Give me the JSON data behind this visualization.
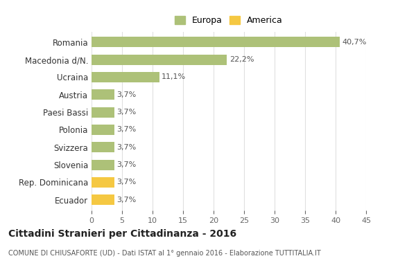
{
  "categories": [
    "Romania",
    "Macedonia d/N.",
    "Ucraina",
    "Austria",
    "Paesi Bassi",
    "Polonia",
    "Svizzera",
    "Slovenia",
    "Rep. Dominicana",
    "Ecuador"
  ],
  "values": [
    40.7,
    22.2,
    11.1,
    3.7,
    3.7,
    3.7,
    3.7,
    3.7,
    3.7,
    3.7
  ],
  "labels": [
    "40,7%",
    "22,2%",
    "11,1%",
    "3,7%",
    "3,7%",
    "3,7%",
    "3,7%",
    "3,7%",
    "3,7%",
    "3,7%"
  ],
  "colors": [
    "#adc178",
    "#adc178",
    "#adc178",
    "#adc178",
    "#adc178",
    "#adc178",
    "#adc178",
    "#adc178",
    "#f5c842",
    "#f5c842"
  ],
  "europa_color": "#adc178",
  "america_color": "#f5c842",
  "xlim": [
    0,
    45
  ],
  "xticks": [
    0,
    5,
    10,
    15,
    20,
    25,
    30,
    35,
    40,
    45
  ],
  "title": "Cittadini Stranieri per Cittadinanza - 2016",
  "subtitle": "COMUNE DI CHIUSAFORTE (UD) - Dati ISTAT al 1° gennaio 2016 - Elaborazione TUTTITALIA.IT",
  "legend_europa": "Europa",
  "legend_america": "America",
  "background_color": "#ffffff",
  "grid_color": "#e0e0e0"
}
